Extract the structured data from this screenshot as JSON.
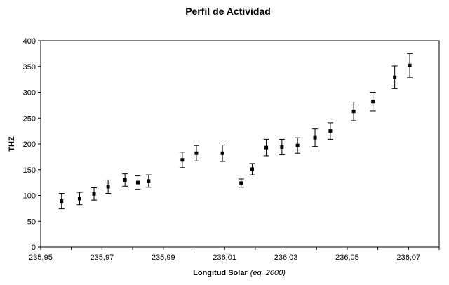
{
  "chart_data": {
    "type": "scatter",
    "title": "Perfil de Actividad",
    "xlabel": "Longitud Solar",
    "xlabel_note": "(eq. 2000)",
    "ylabel": "THZ",
    "xlim": [
      235.95,
      236.08
    ],
    "ylim": [
      0,
      400
    ],
    "x_ticks": [
      "235,95",
      "235,97",
      "235,99",
      "236,01",
      "236,03",
      "236,05",
      "236,07"
    ],
    "x_tick_values": [
      235.95,
      235.97,
      235.99,
      236.01,
      236.03,
      236.05,
      236.07
    ],
    "y_ticks": [
      "0",
      "50",
      "100",
      "150",
      "200",
      "250",
      "300",
      "350",
      "400"
    ],
    "y_tick_values": [
      0,
      50,
      100,
      150,
      200,
      250,
      300,
      350,
      400
    ],
    "grid": false,
    "legend": "none",
    "series": [
      {
        "x": [
          235.9568,
          235.9627,
          235.9674,
          235.972,
          235.9775,
          235.9817,
          235.9852,
          235.9962,
          236.0008,
          236.0093,
          236.0154,
          236.019,
          236.0236,
          236.0287,
          236.0338,
          236.0395,
          236.0445,
          236.0521,
          236.0584,
          236.0655,
          236.0704
        ],
        "y": [
          89,
          94,
          103,
          117,
          130,
          125,
          128,
          169,
          182,
          182,
          124,
          151,
          193,
          194,
          197,
          212,
          225,
          263,
          282,
          329,
          352
        ],
        "err": [
          15,
          12,
          12,
          13,
          12,
          13,
          12,
          15,
          15,
          16,
          8,
          11,
          16,
          15,
          15,
          17,
          16,
          18,
          18,
          22,
          23
        ]
      }
    ]
  }
}
